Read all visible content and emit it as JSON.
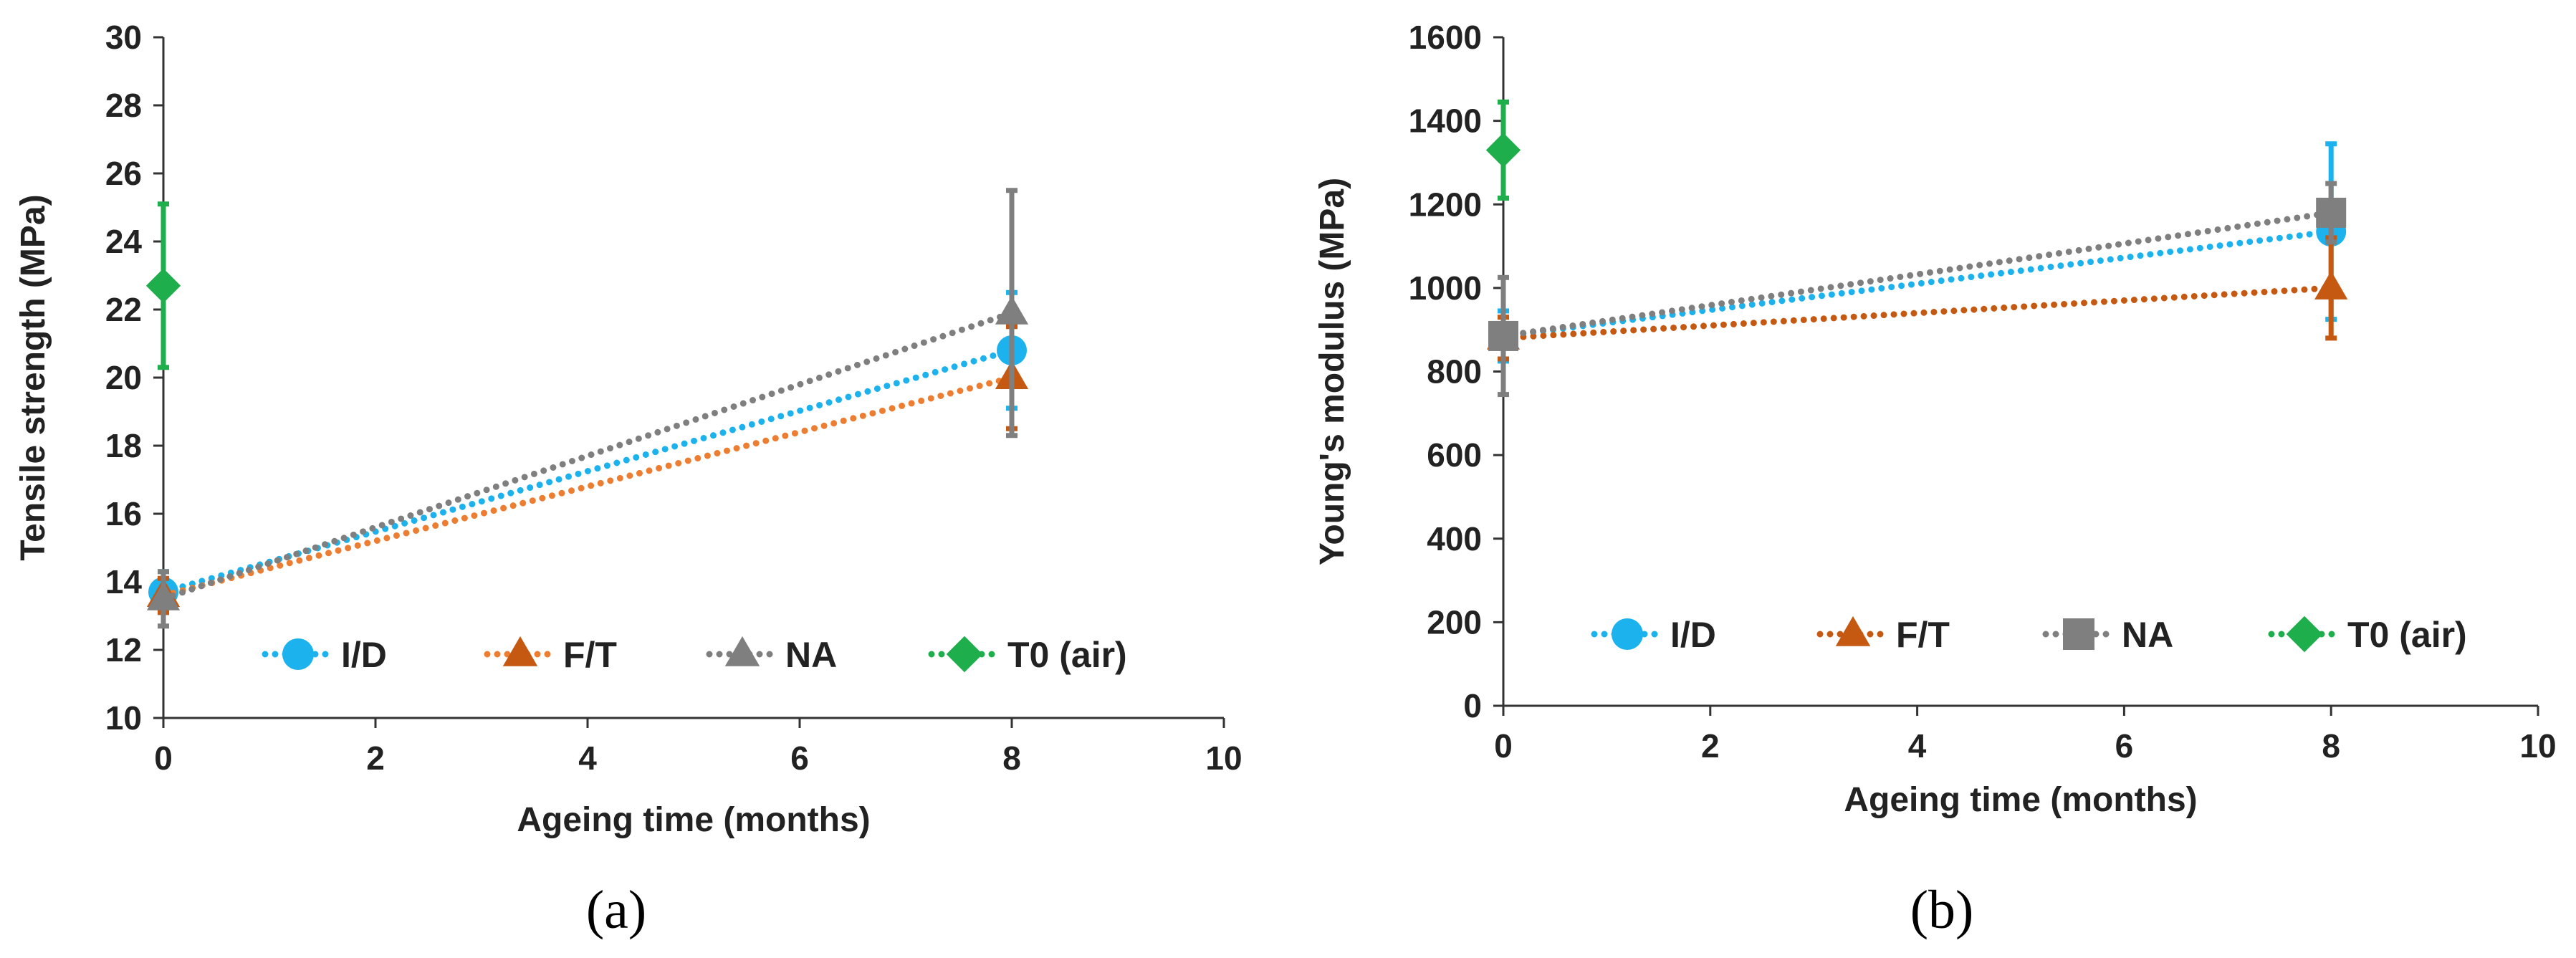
{
  "chart_data": [
    {
      "id": "a",
      "type": "line",
      "caption": "(a)",
      "xlabel": "Ageing time (months)",
      "ylabel": "Tensile strength (MPa)",
      "xlim": [
        0,
        10
      ],
      "ylim": [
        10,
        30
      ],
      "xticks": [
        "0",
        "2",
        "4",
        "6",
        "8",
        "10"
      ],
      "yticks": [
        "10",
        "12",
        "14",
        "16",
        "18",
        "20",
        "22",
        "24",
        "26",
        "28",
        "30"
      ],
      "legend_position": "bottom",
      "series": [
        {
          "name": "I/D",
          "marker": "circle",
          "color": "#1BB2EE",
          "line_color": "#1BB2EE",
          "points": [
            {
              "x": 0,
              "y": 13.7,
              "err": 0.6
            },
            {
              "x": 8,
              "y": 20.8,
              "err": 1.7
            }
          ]
        },
        {
          "name": "F/T",
          "marker": "triangle",
          "color": "#C65911",
          "line_color": "#ED7D31",
          "points": [
            {
              "x": 0,
              "y": 13.6,
              "err": 0.5
            },
            {
              "x": 8,
              "y": 20.0,
              "err": 1.5
            }
          ]
        },
        {
          "name": "NA",
          "marker": "triangle",
          "color": "#7F7F7F",
          "line_color": "#7F7F7F",
          "points": [
            {
              "x": 0,
              "y": 13.5,
              "err": 0.8
            },
            {
              "x": 8,
              "y": 21.9,
              "err": 3.6
            }
          ]
        },
        {
          "name": "T0 (air)",
          "marker": "diamond",
          "color": "#1FAE4C",
          "line_color": "#1FAE4C",
          "points": [
            {
              "x": 0,
              "y": 22.7,
              "err": 2.4
            }
          ]
        }
      ]
    },
    {
      "id": "b",
      "type": "line",
      "caption": "(b)",
      "xlabel": "Ageing time (months)",
      "ylabel": "Young's modulus (MPa)",
      "xlim": [
        0,
        10
      ],
      "ylim": [
        0,
        1600
      ],
      "xticks": [
        "0",
        "2",
        "4",
        "6",
        "8",
        "10"
      ],
      "yticks": [
        "0",
        "200",
        "400",
        "600",
        "800",
        "1000",
        "1200",
        "1400",
        "1600"
      ],
      "legend_position": "bottom",
      "series": [
        {
          "name": "I/D",
          "marker": "circle",
          "color": "#1BB2EE",
          "line_color": "#1BB2EE",
          "points": [
            {
              "x": 0,
              "y": 885,
              "err": 60
            },
            {
              "x": 8,
              "y": 1135,
              "err": 210
            }
          ]
        },
        {
          "name": "F/T",
          "marker": "triangle",
          "color": "#C65911",
          "line_color": "#C65911",
          "points": [
            {
              "x": 0,
              "y": 880,
              "err": 50
            },
            {
              "x": 8,
              "y": 1000,
              "err": 120
            }
          ]
        },
        {
          "name": "NA",
          "marker": "square",
          "color": "#7F7F7F",
          "line_color": "#7F7F7F",
          "points": [
            {
              "x": 0,
              "y": 885,
              "err": 140
            },
            {
              "x": 8,
              "y": 1180,
              "err": 70
            }
          ]
        },
        {
          "name": "T0 (air)",
          "marker": "diamond",
          "color": "#1FAE4C",
          "line_color": "#1FAE4C",
          "points": [
            {
              "x": 0,
              "y": 1330,
              "err": 115
            }
          ]
        }
      ]
    }
  ]
}
